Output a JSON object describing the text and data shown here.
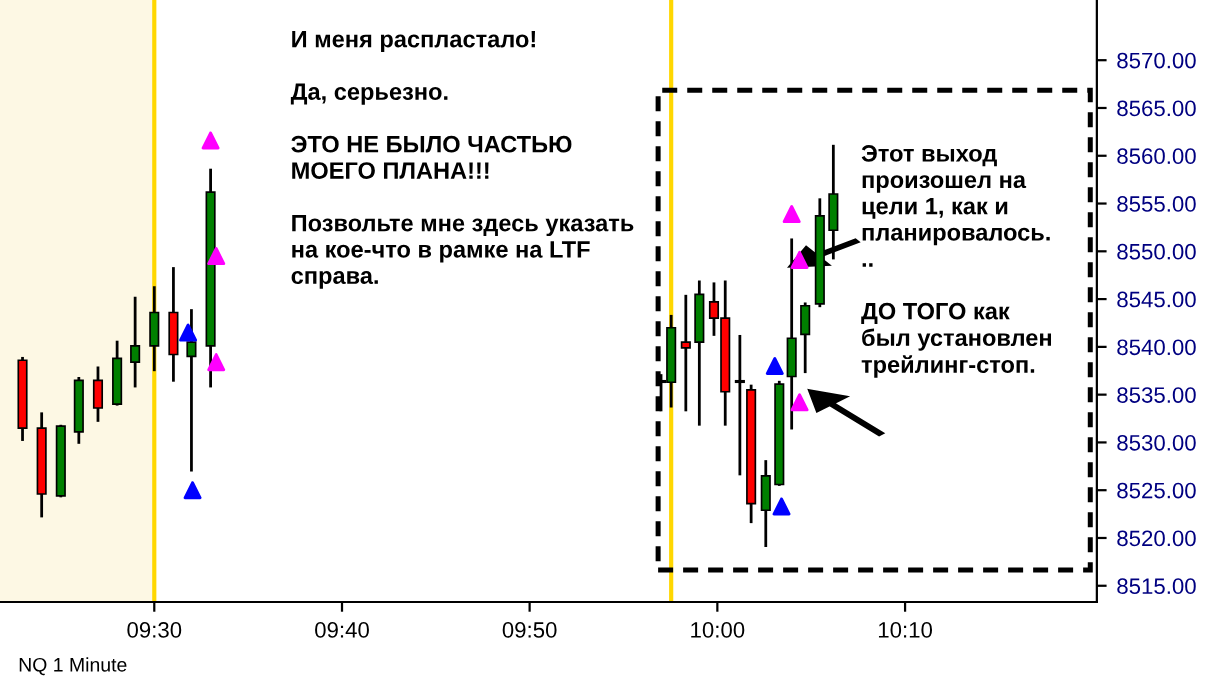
{
  "chart_data": {
    "type": "candlestick",
    "x": [
      9.383,
      9.4,
      9.417,
      9.433,
      9.45,
      9.467,
      9.483,
      9.5,
      9.517,
      9.533,
      9.55,
      9.95,
      9.959,
      9.972,
      9.984,
      9.997,
      10.007,
      10.02,
      10.03,
      10.043,
      10.055,
      10.066,
      10.078,
      10.091,
      10.103
    ],
    "ohlc": [
      [
        8538.6,
        8538.8,
        8530.3,
        8531.5
      ],
      [
        8531.5,
        8533.0,
        8522.3,
        8524.6
      ],
      [
        8524.4,
        8531.7,
        8524.4,
        8531.7
      ],
      [
        8531.1,
        8536.7,
        8530.0,
        8536.5
      ],
      [
        8536.5,
        8537.8,
        8532.3,
        8533.6
      ],
      [
        8534.0,
        8540.5,
        8534.0,
        8538.8
      ],
      [
        8538.4,
        8545.1,
        8535.9,
        8540.1
      ],
      [
        8540.1,
        8546.2,
        8537.6,
        8543.6
      ],
      [
        8543.6,
        8548.2,
        8536.5,
        8539.2
      ],
      [
        8539.0,
        8543.8,
        8527.1,
        8540.5
      ],
      [
        8540.1,
        8558.5,
        8535.9,
        8556.2
      ],
      [
        8536.3,
        8537.0,
        8533.4,
        8536.3
      ],
      [
        8536.3,
        8543.2,
        8533.8,
        8542.0
      ],
      [
        8540.5,
        8545.3,
        8533.4,
        8539.9
      ],
      [
        8540.5,
        8546.8,
        8531.9,
        8545.5
      ],
      [
        8544.7,
        8546.6,
        8541.3,
        8543.0
      ],
      [
        8543.0,
        8546.8,
        8531.9,
        8535.3
      ],
      [
        8536.3,
        8541.1,
        8526.7,
        8536.3
      ],
      [
        8535.5,
        8535.9,
        8521.7,
        8523.6
      ],
      [
        8522.9,
        8528.0,
        8519.2,
        8526.5
      ],
      [
        8525.6,
        8536.3,
        8525.6,
        8536.1
      ],
      [
        8536.9,
        8551.2,
        8531.5,
        8540.9
      ],
      [
        8541.3,
        8544.5,
        8537.4,
        8544.3
      ],
      [
        8544.5,
        8555.4,
        8544.3,
        8553.7
      ],
      [
        8552.2,
        8561.0,
        8549.3,
        8556.0
      ]
    ],
    "colors": [
      "#ff0000",
      "#ff0000",
      "#008000",
      "#008000",
      "#ff0000",
      "#008000",
      "#008000",
      "#008000",
      "#ff0000",
      "#008000",
      "#008000",
      "#000000",
      "#008000",
      "#ff0000",
      "#008000",
      "#ff0000",
      "#ff0000",
      "#000000",
      "#ff0000",
      "#008000",
      "#008000",
      "#008000",
      "#008000",
      "#008000",
      "#008000"
    ],
    "series": [
      {
        "type": "scatter",
        "marker": "triangle",
        "color": "#0000ff",
        "x": [
          9.53,
          9.534,
          10.051,
          10.057
        ],
        "values": [
          8541.5,
          8525.0,
          8538.0,
          8523.3
        ]
      },
      {
        "type": "scatter",
        "marker": "triangle",
        "color": "#ff00ff",
        "x": [
          9.55,
          9.555,
          9.555,
          10.066,
          10.073,
          10.073
        ],
        "values": [
          8561.6,
          8549.5,
          8538.4,
          8553.9,
          8549.1,
          8534.2
        ]
      }
    ],
    "bands": [
      {
        "axis": "x",
        "from": 9.363,
        "to": 9.5,
        "color": "#fdf8e4"
      }
    ],
    "ref_lines": [
      {
        "axis": "x",
        "value": 9.5,
        "color": "#ffd700"
      },
      {
        "axis": "x",
        "value": 9.959,
        "color": "#ffd700"
      }
    ],
    "xlim": [
      9.363,
      10.337
    ],
    "xticks": [
      {
        "value": 9.5,
        "label": "09:30"
      },
      {
        "value": 9.6667,
        "label": "09:40"
      },
      {
        "value": 9.8333,
        "label": "09:50"
      },
      {
        "value": 10.0,
        "label": "10:00"
      },
      {
        "value": 10.1667,
        "label": "10:10"
      }
    ],
    "ylim": [
      8513.3,
      8576.3
    ],
    "yticks": [
      {
        "value": 8515,
        "label": "8515.00"
      },
      {
        "value": 8520,
        "label": "8520.00"
      },
      {
        "value": 8525,
        "label": "8525.00"
      },
      {
        "value": 8530,
        "label": "8530.00"
      },
      {
        "value": 8535,
        "label": "8535.00"
      },
      {
        "value": 8540,
        "label": "8540.00"
      },
      {
        "value": 8545,
        "label": "8545.00"
      },
      {
        "value": 8550,
        "label": "8550.00"
      },
      {
        "value": 8555,
        "label": "8555.00"
      },
      {
        "value": 8560,
        "label": "8560.00"
      },
      {
        "value": 8565,
        "label": "8565.00"
      },
      {
        "value": 8570,
        "label": "8570.00"
      }
    ],
    "grid": false,
    "annotations": [
      "И меня распластало!\n\nДа, серьезно.\n\nЭТО НЕ БЫЛО ЧАСТЬЮ\nМОЕГО ПЛАНА!!!\n\nПозвольте мне здесь указать\nна кое-что в рамке на LTF\nсправа.",
      "Этот выход\nпроизошел на\nцели 1, как и\nпланировалось.\n..\n\nДО ТОГО как\nбыл установлен\nтрейлинг-стоп.",
      "NQ 1 Minute"
    ]
  }
}
